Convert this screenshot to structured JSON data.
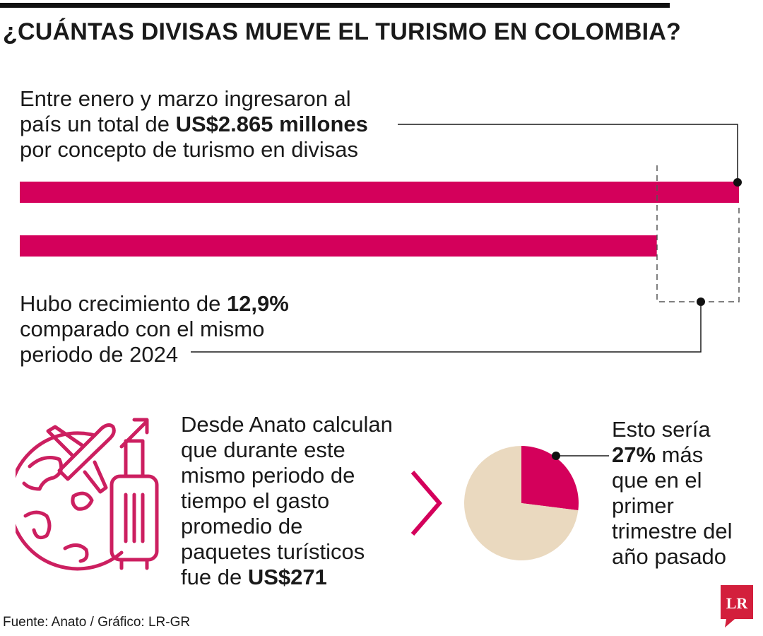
{
  "title": "¿CUÁNTAS DIVISAS MUEVE EL TURISMO EN COLOMBIA?",
  "annotation_top": {
    "line1": "Entre enero y marzo ingresaron al",
    "line2_pre": "país un total de ",
    "line2_bold": "US$2.865 millones",
    "line3": "por concepto de turismo en divisas"
  },
  "annotation_growth": {
    "line1_pre": "Hubo crecimiento de ",
    "line1_bold": "12,9%",
    "line2": "comparado con el mismo",
    "line3": "periodo de 2024"
  },
  "annotation_spend": {
    "line1": "Desde Anato calculan",
    "line2": "que durante este",
    "line3": "mismo periodo de",
    "line4": "tiempo el gasto",
    "line5": "promedio de",
    "line6": "paquetes turísticos",
    "line7_pre": "fue de ",
    "line7_bold": "US$271"
  },
  "annotation_pie": {
    "line1": "Esto sería",
    "line2_bold": "27%",
    "line2_post": " más",
    "line3": "que en el",
    "line4": "primer",
    "line5": "trimestre del",
    "line6": "año pasado"
  },
  "source": "Fuente: Anato / Gráfico: LR-GR",
  "logo_text": "LR",
  "colors": {
    "bar": "#d4005b",
    "pie_main": "#ead9bf",
    "pie_highlight": "#d4005b",
    "icon": "#cc1f60",
    "logo": "#d31f3c",
    "text": "#1a1a1a"
  },
  "icons": [
    "globe-travel-icon",
    "airplane-icon",
    "suitcase-icon",
    "arrow-icon",
    "chevron-right-icon"
  ],
  "chart_data": [
    {
      "type": "bar",
      "orientation": "horizontal",
      "categories": [
        "",
        ""
      ],
      "values": [
        2865,
        2537.6
      ],
      "unit": "US$ millones",
      "xlim": [
        0,
        2865
      ],
      "grid": false,
      "legend": "none",
      "title": "",
      "xlabel": "",
      "ylabel": ""
    },
    {
      "type": "pie",
      "labels": [
        "",
        ""
      ],
      "values": [
        27,
        73
      ],
      "title": ""
    }
  ]
}
